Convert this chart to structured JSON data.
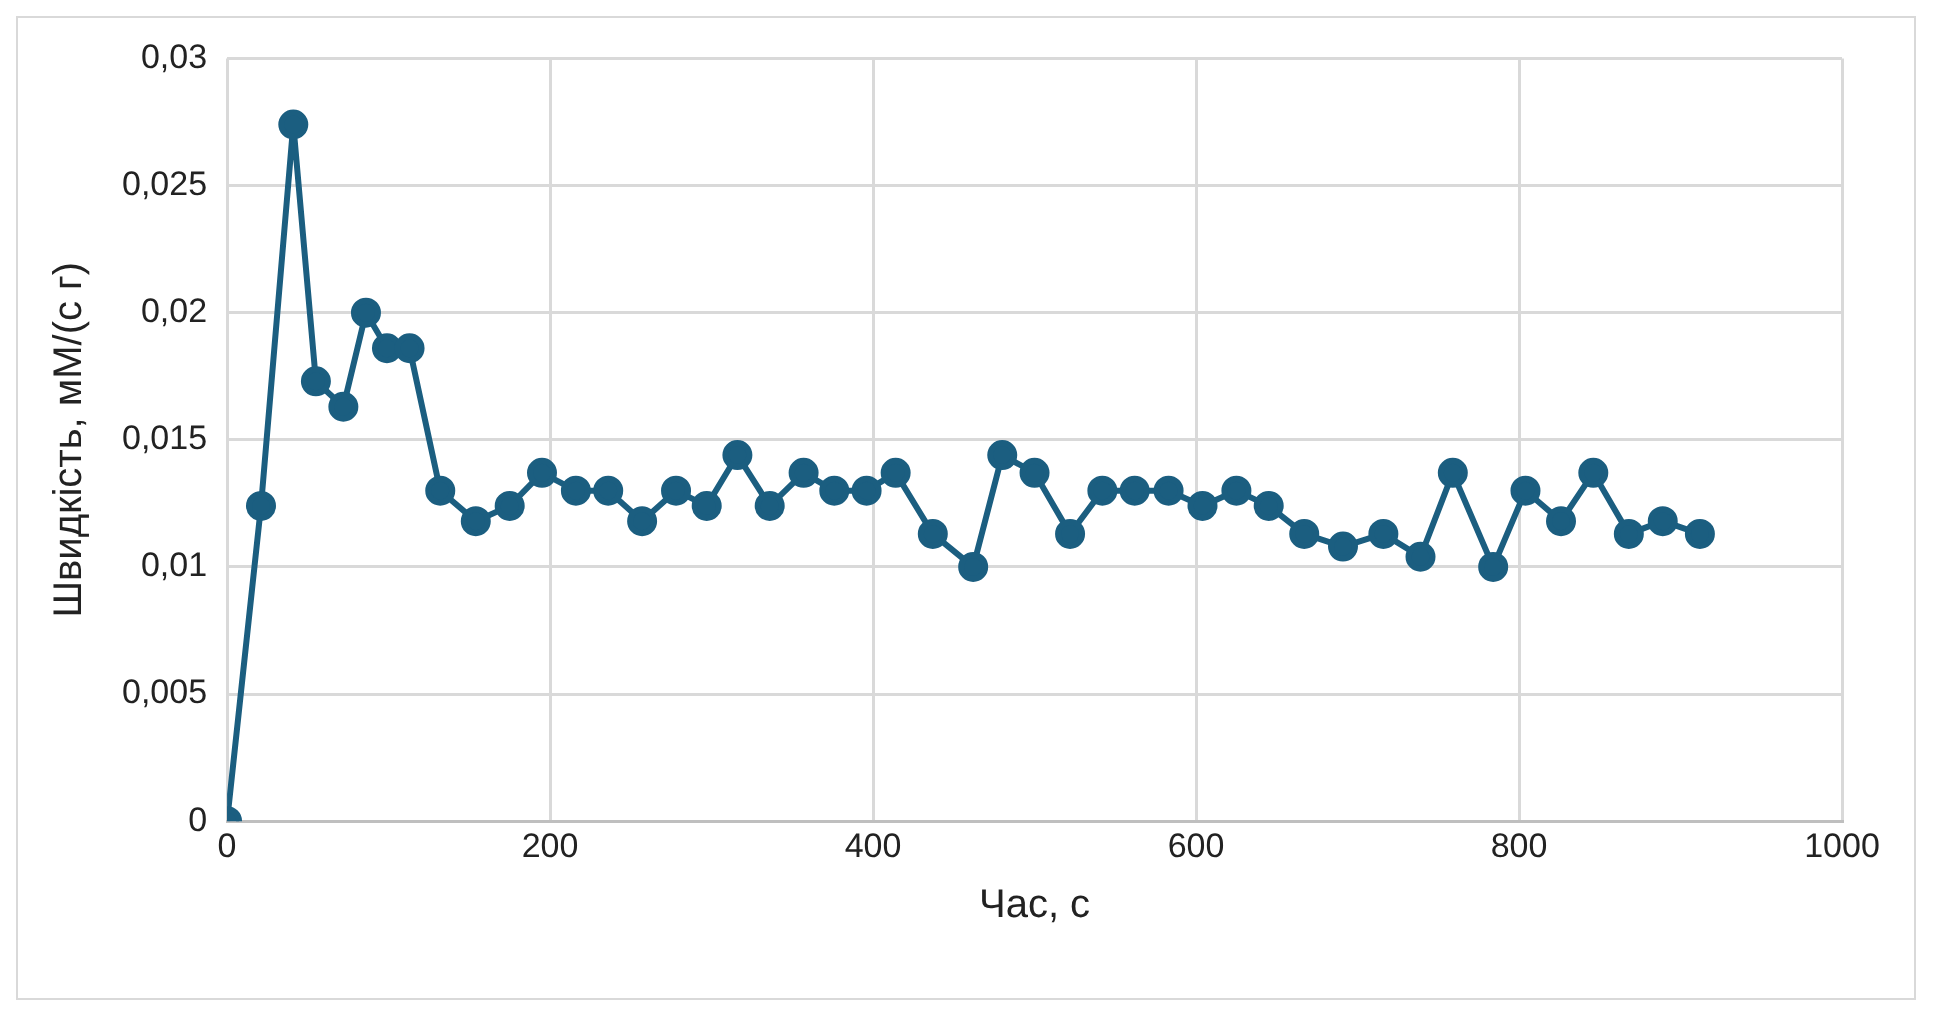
{
  "chart_data": {
    "type": "line",
    "xlabel": "Час, с",
    "ylabel": "Швидкість, мМ/(с г)",
    "x": [
      0,
      21,
      41,
      55,
      72,
      86,
      99,
      113,
      132,
      154,
      175,
      195,
      216,
      236,
      257,
      278,
      297,
      316,
      336,
      357,
      376,
      396,
      414,
      437,
      462,
      480,
      500,
      522,
      542,
      562,
      583,
      604,
      625,
      645,
      667,
      691,
      716,
      739,
      759,
      784,
      804,
      826,
      846,
      868,
      889,
      912
    ],
    "series": [
      {
        "color": "#1b5e80",
        "values": [
          0,
          0.0124,
          0.0274,
          0.0173,
          0.0163,
          0.02,
          0.0186,
          0.0186,
          0.013,
          0.0118,
          0.0124,
          0.0137,
          0.013,
          0.013,
          0.0118,
          0.013,
          0.0124,
          0.0144,
          0.0124,
          0.0137,
          0.013,
          0.013,
          0.0137,
          0.0113,
          0.01,
          0.0144,
          0.0137,
          0.0113,
          0.013,
          0.013,
          0.013,
          0.0124,
          0.013,
          0.0124,
          0.0113,
          0.0108,
          0.0113,
          0.0104,
          0.0137,
          0.01,
          0.013,
          0.0118,
          0.0137,
          0.0113,
          0.0118,
          0.0113
        ]
      }
    ],
    "xlim": [
      0,
      1000
    ],
    "xticks": [
      0,
      200,
      400,
      600,
      800,
      1000
    ],
    "ylim": [
      0,
      0.03
    ],
    "yticks": [
      0,
      {
        "value": 0.005,
        "label": "0,005"
      },
      {
        "value": 0.01,
        "label": "0,01"
      },
      {
        "value": 0.015,
        "label": "0,015"
      },
      {
        "value": 0.02,
        "label": "0,02"
      },
      {
        "value": 0.025,
        "label": "0,025"
      },
      {
        "value": 0.03,
        "label": "0,03"
      }
    ],
    "grid": true,
    "legend": false,
    "marker": "circle",
    "line_style": "solid"
  }
}
